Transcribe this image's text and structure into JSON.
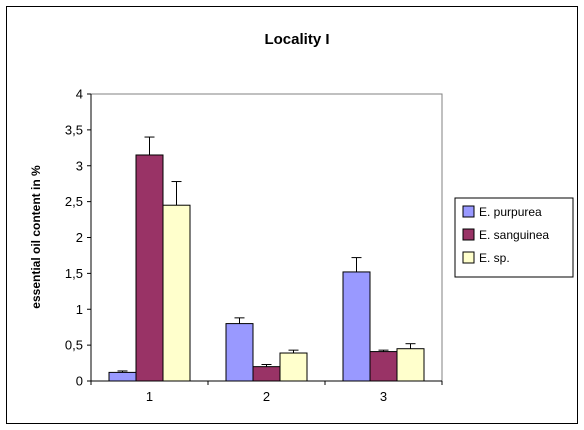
{
  "chart_data": {
    "type": "bar",
    "title": "Locality I",
    "xlabel": "",
    "ylabel": "essential oil content in %",
    "categories": [
      "1",
      "2",
      "3"
    ],
    "ylim": [
      0,
      4
    ],
    "yticks": [
      "0",
      "0,5",
      "1",
      "1,5",
      "2",
      "2,5",
      "3",
      "3,5",
      "4"
    ],
    "grid": false,
    "legend_position": "right",
    "series": [
      {
        "name": "E. purpurea",
        "color": "#9999ff",
        "values": [
          0.12,
          0.8,
          1.52
        ],
        "errors": [
          0.02,
          0.08,
          0.2
        ]
      },
      {
        "name": "E. sanguinea",
        "color": "#993366",
        "values": [
          3.15,
          0.2,
          0.41
        ],
        "errors": [
          0.25,
          0.03,
          0.02
        ]
      },
      {
        "name": "E. sp.",
        "color": "#ffffcc",
        "values": [
          2.45,
          0.39,
          0.45
        ],
        "errors": [
          0.33,
          0.04,
          0.07
        ]
      }
    ]
  }
}
